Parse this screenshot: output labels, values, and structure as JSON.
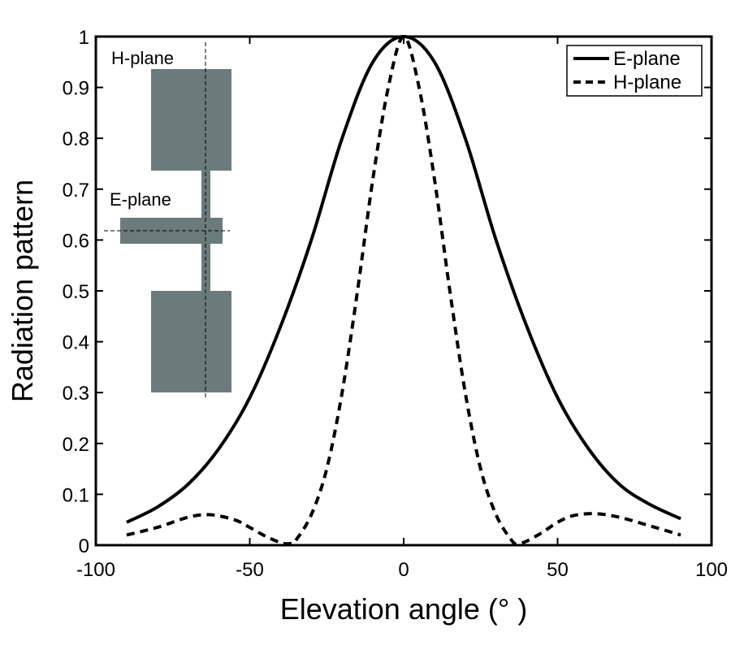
{
  "chart_data": {
    "type": "line",
    "title": "",
    "xlabel": "Elevation angle (° )",
    "ylabel": "Radiation pattern",
    "xlim": [
      -100,
      100
    ],
    "ylim": [
      0,
      1
    ],
    "xticks": [
      -100,
      -50,
      0,
      50,
      100
    ],
    "yticks": [
      0,
      0.1,
      0.2,
      0.3,
      0.4,
      0.5,
      0.6,
      0.7,
      0.8,
      0.9,
      1
    ],
    "xtick_labels": [
      "-100",
      "-50",
      "0",
      "50",
      "100"
    ],
    "ytick_labels": [
      "0",
      "0.1",
      "0.2",
      "0.3",
      "0.4",
      "0.5",
      "0.6",
      "0.7",
      "0.8",
      "0.9",
      "1"
    ],
    "grid": false,
    "legend_position": "top-right",
    "series": [
      {
        "name": "E-plane",
        "style": "solid",
        "x": [
          -90,
          -80,
          -70,
          -60,
          -50,
          -40,
          -30,
          -20,
          -10,
          0,
          10,
          20,
          30,
          40,
          50,
          60,
          70,
          80,
          90
        ],
        "y": [
          0.045,
          0.075,
          0.12,
          0.19,
          0.29,
          0.43,
          0.6,
          0.8,
          0.95,
          1.0,
          0.95,
          0.8,
          0.6,
          0.43,
          0.29,
          0.19,
          0.12,
          0.08,
          0.052
        ]
      },
      {
        "name": "H-plane",
        "style": "dashed",
        "x": [
          -90,
          -80,
          -70,
          -63,
          -55,
          -50,
          -45,
          -40,
          -37,
          -35,
          -30,
          -25,
          -20,
          -15,
          -10,
          -5,
          0,
          5,
          10,
          15,
          20,
          25,
          30,
          35,
          37,
          40,
          45,
          50,
          55,
          62,
          70,
          80,
          90
        ],
        "y": [
          0.02,
          0.035,
          0.055,
          0.06,
          0.05,
          0.035,
          0.018,
          0.005,
          0.003,
          0.01,
          0.06,
          0.15,
          0.3,
          0.5,
          0.72,
          0.9,
          1.0,
          0.9,
          0.72,
          0.5,
          0.3,
          0.15,
          0.06,
          0.01,
          0.003,
          0.008,
          0.025,
          0.045,
          0.058,
          0.062,
          0.055,
          0.038,
          0.02
        ]
      }
    ],
    "inset_labels": {
      "h_plane": "H-plane",
      "e_plane": "E-plane"
    }
  }
}
